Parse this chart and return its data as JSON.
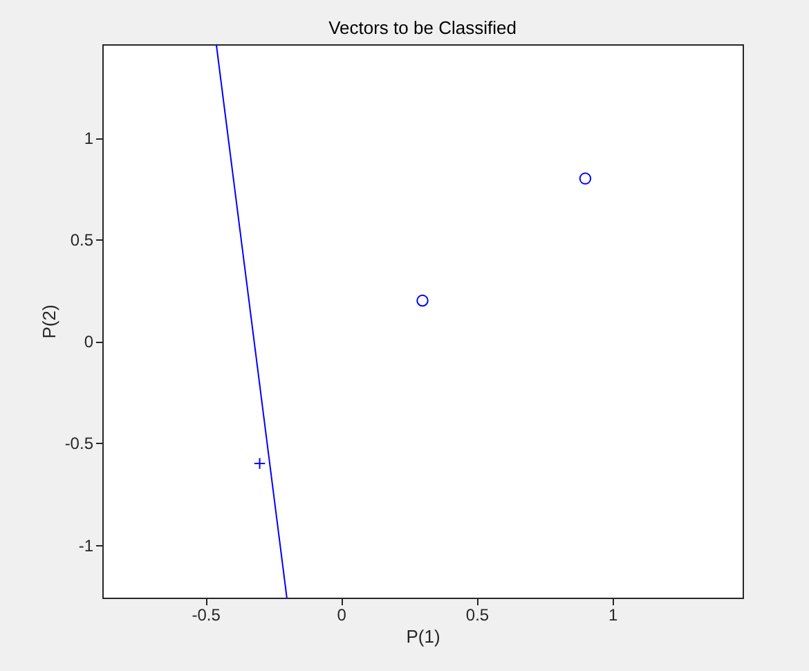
{
  "chart_data": {
    "type": "scatter",
    "title": "Vectors to be Classified",
    "xlabel": "P(1)",
    "ylabel": "P(2)",
    "xlim": [
      -0.88,
      1.48
    ],
    "ylim": [
      -1.26,
      1.46
    ],
    "xticks": [
      -0.5,
      0,
      0.5,
      1
    ],
    "yticks": [
      -1,
      -0.5,
      0,
      0.5,
      1
    ],
    "grid": false,
    "series": [
      {
        "marker": "circle",
        "color": "#0000ff",
        "x": [
          0.3,
          0.9
        ],
        "values": [
          0.2,
          0.8
        ]
      },
      {
        "marker": "cross",
        "color": "#0000ff",
        "x": [
          -0.3
        ],
        "values": [
          -0.6
        ]
      },
      {
        "type": "line",
        "marker": "none",
        "color": "#0000ff",
        "line_style": "solid",
        "x": [
          -0.46,
          -0.2
        ],
        "values": [
          1.46,
          -1.26
        ]
      }
    ]
  }
}
